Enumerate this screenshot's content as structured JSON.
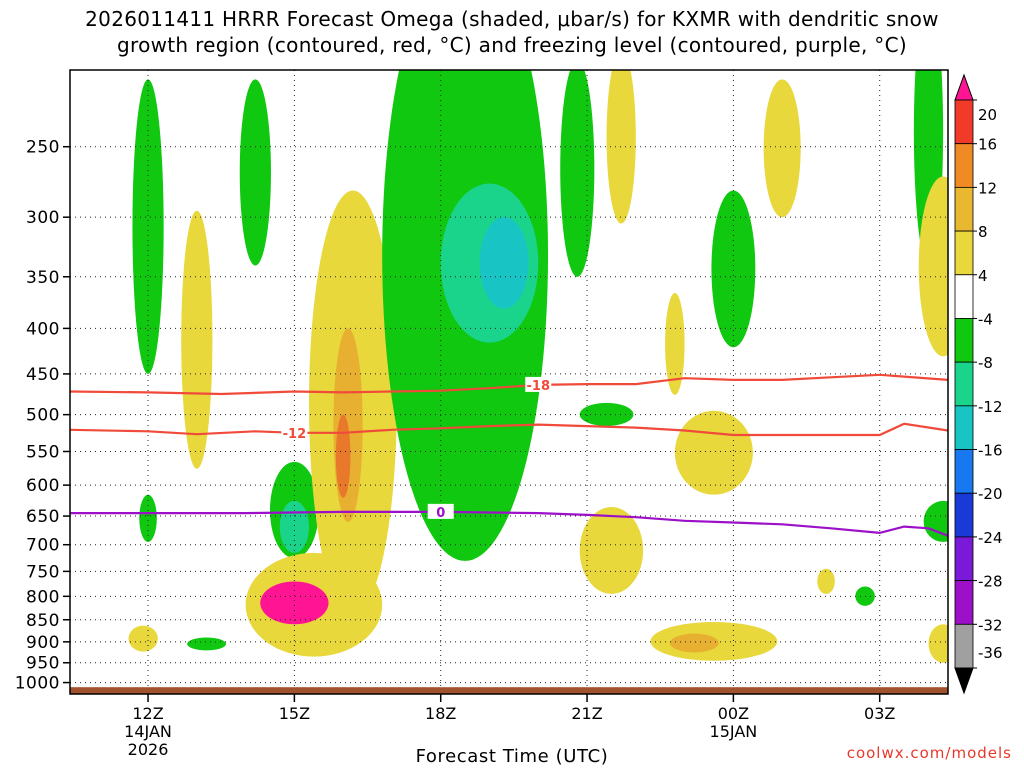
{
  "title": {
    "line1": "2026011411 HRRR Forecast Omega (shaded, μbar/s) for KXMR with dendritic snow",
    "line2": "growth region (contoured, red, °C) and freezing level (contoured, purple, °C)"
  },
  "credit": "coolwx.com/models",
  "chart_data": {
    "type": "contour",
    "title": "2026011411 HRRR Forecast Omega (shaded, μbar/s) for KXMR with dendritic snow growth region (contoured, red, °C) and freezing level (contoured, purple, °C)",
    "xlabel": "Forecast Time (UTC)",
    "ylabel": "",
    "x_range_hours": [
      10.4,
      28.4
    ],
    "y_range_hpa": [
      1030,
      205
    ],
    "x_ticks": [
      {
        "hour": 12,
        "label": "12Z",
        "sub": [
          "14JAN",
          "2026"
        ]
      },
      {
        "hour": 15,
        "label": "15Z",
        "sub": []
      },
      {
        "hour": 18,
        "label": "18Z",
        "sub": []
      },
      {
        "hour": 21,
        "label": "21Z",
        "sub": []
      },
      {
        "hour": 24,
        "label": "00Z",
        "sub": [
          "15JAN"
        ]
      },
      {
        "hour": 27,
        "label": "03Z",
        "sub": []
      }
    ],
    "y_ticks": [
      {
        "p": 250,
        "label": "250"
      },
      {
        "p": 300,
        "label": "300"
      },
      {
        "p": 350,
        "label": "350"
      },
      {
        "p": 400,
        "label": "400"
      },
      {
        "p": 450,
        "label": "450"
      },
      {
        "p": 500,
        "label": "500"
      },
      {
        "p": 550,
        "label": "550"
      },
      {
        "p": 600,
        "label": "600"
      },
      {
        "p": 650,
        "label": "650"
      },
      {
        "p": 700,
        "label": "700"
      },
      {
        "p": 750,
        "label": "750"
      },
      {
        "p": 800,
        "label": "800"
      },
      {
        "p": 850,
        "label": "850"
      },
      {
        "p": 900,
        "label": "900"
      },
      {
        "p": 950,
        "label": "950"
      },
      {
        "p": 1000,
        "label": "1000"
      }
    ],
    "colorbar": {
      "levels": [
        "20",
        "16",
        "12",
        "8",
        "4",
        "-4",
        "-8",
        "-12",
        "-16",
        "-20",
        "-24",
        "-28",
        "-32",
        "-36"
      ],
      "colors": [
        "#ff1493",
        "#f03a2a",
        "#f08a24",
        "#e8b830",
        "#e8d83c",
        "#ffffff",
        "#10c810",
        "#1ad48c",
        "#18c4c4",
        "#1878f0",
        "#1a3ad8",
        "#7a1ad8",
        "#9b10c8",
        "#a0a0a0",
        "#000000"
      ],
      "units": "μbar/s"
    },
    "ground_level_hpa": 1012,
    "ground_color": "#a0522d",
    "contours": [
      {
        "name": "dgz-minus18",
        "label": "-18",
        "color": "#f04a3a",
        "points": [
          [
            10.4,
            471
          ],
          [
            12,
            472
          ],
          [
            13.5,
            474
          ],
          [
            15,
            471
          ],
          [
            16,
            472
          ],
          [
            17,
            471
          ],
          [
            18,
            470
          ],
          [
            19,
            467
          ],
          [
            20,
            463
          ],
          [
            21,
            462
          ],
          [
            22,
            462
          ],
          [
            23,
            455
          ],
          [
            24,
            457
          ],
          [
            25,
            457
          ],
          [
            26,
            454
          ],
          [
            27,
            451
          ],
          [
            28.4,
            457
          ]
        ],
        "label_at": [
          20.0,
          463
        ]
      },
      {
        "name": "dgz-minus12",
        "label": "-12",
        "color": "#f04a3a",
        "points": [
          [
            10.4,
            520
          ],
          [
            12,
            522
          ],
          [
            13,
            526
          ],
          [
            14.2,
            522
          ],
          [
            15,
            524
          ],
          [
            16,
            524
          ],
          [
            17,
            520
          ],
          [
            18,
            518
          ],
          [
            19,
            515
          ],
          [
            20,
            513
          ],
          [
            21,
            515
          ],
          [
            22,
            517
          ],
          [
            23,
            521
          ],
          [
            24,
            527
          ],
          [
            25,
            527
          ],
          [
            26,
            527
          ],
          [
            27,
            527
          ],
          [
            27.5,
            512
          ],
          [
            28.4,
            521
          ]
        ],
        "label_at": [
          15.0,
          524
        ]
      },
      {
        "name": "freezing-level",
        "label": "0",
        "color": "#9b10c8",
        "points": [
          [
            10.4,
            645
          ],
          [
            12,
            645
          ],
          [
            14,
            645
          ],
          [
            16,
            643
          ],
          [
            18,
            643
          ],
          [
            20,
            645
          ],
          [
            21,
            648
          ],
          [
            22,
            652
          ],
          [
            23,
            658
          ],
          [
            24,
            661
          ],
          [
            25,
            664
          ],
          [
            26,
            671
          ],
          [
            27,
            679
          ],
          [
            27.5,
            668
          ],
          [
            28,
            671
          ],
          [
            28.4,
            684
          ]
        ],
        "label_at": [
          18.0,
          643
        ]
      }
    ],
    "omega_regions": [
      {
        "name": "green-12z-upper",
        "level": "-4",
        "center": [
          12.0,
          330
        ],
        "half_width": 0.32,
        "half_height": 120
      },
      {
        "name": "green-12z-low",
        "level": "-4",
        "center": [
          12.0,
          655
        ],
        "half_width": 0.18,
        "half_height": 40
      },
      {
        "name": "green-1330-upper",
        "level": "-4",
        "center": [
          14.2,
          275
        ],
        "half_width": 0.32,
        "half_height": 65
      },
      {
        "name": "yellow-13z-column",
        "level": "4",
        "center": [
          13.0,
          435
        ],
        "half_width": 0.32,
        "half_height": 140
      },
      {
        "name": "yellow-12z-low",
        "level": "4",
        "center": [
          11.9,
          893
        ],
        "half_width": 0.3,
        "half_height": 30
      },
      {
        "name": "green-13z-low",
        "level": "-4",
        "center": [
          13.2,
          905
        ],
        "half_width": 0.4,
        "half_height": 15
      },
      {
        "name": "green-15z-core",
        "level": "-4",
        "center": [
          15.0,
          645
        ],
        "half_width": 0.5,
        "half_height": 80
      },
      {
        "name": "blue-15z-core",
        "level": "-8",
        "center": [
          15.0,
          670
        ],
        "half_width": 0.3,
        "half_height": 45
      },
      {
        "name": "yellow-16z-column",
        "level": "4",
        "center": [
          16.2,
          560
        ],
        "half_width": 0.9,
        "half_height": 280
      },
      {
        "name": "orange-16z",
        "level": "8",
        "center": [
          16.1,
          530
        ],
        "half_width": 0.3,
        "half_height": 130
      },
      {
        "name": "red-16z",
        "level": "12",
        "center": [
          16.0,
          560
        ],
        "half_width": 0.15,
        "half_height": 60
      },
      {
        "name": "yellow-15z-low",
        "level": "4",
        "center": [
          15.4,
          825
        ],
        "half_width": 1.4,
        "half_height": 110
      },
      {
        "name": "magenta-15z-low",
        "level": "20",
        "center": [
          15.0,
          815
        ],
        "half_width": 0.7,
        "half_height": 45
      },
      {
        "name": "green-18z-plume",
        "level": "-4",
        "center": [
          18.5,
          430
        ],
        "half_width": 1.7,
        "half_height": 300
      },
      {
        "name": "teal-18z-plume",
        "level": "-8",
        "center": [
          19.0,
          345
        ],
        "half_width": 1.0,
        "half_height": 70
      },
      {
        "name": "cyan-18z-plume",
        "level": "-12",
        "center": [
          19.3,
          340
        ],
        "half_width": 0.5,
        "half_height": 40
      },
      {
        "name": "green-21z-upper",
        "level": "-4",
        "center": [
          20.8,
          275
        ],
        "half_width": 0.35,
        "half_height": 75
      },
      {
        "name": "yellow-2130-upper",
        "level": "4",
        "center": [
          21.7,
          250
        ],
        "half_width": 0.3,
        "half_height": 55
      },
      {
        "name": "green-21z-mid",
        "level": "-4",
        "center": [
          21.4,
          500
        ],
        "half_width": 0.55,
        "half_height": 15
      },
      {
        "name": "yellow-21z-low",
        "level": "4",
        "center": [
          21.5,
          715
        ],
        "half_width": 0.65,
        "half_height": 80
      },
      {
        "name": "yellow-2230-upper",
        "level": "4",
        "center": [
          22.8,
          420
        ],
        "half_width": 0.2,
        "half_height": 55
      },
      {
        "name": "green-00z-upper",
        "level": "-4",
        "center": [
          24.0,
          350
        ],
        "half_width": 0.45,
        "half_height": 70
      },
      {
        "name": "yellow-00z-mid",
        "level": "4",
        "center": [
          23.6,
          555
        ],
        "half_width": 0.8,
        "half_height": 60
      },
      {
        "name": "yellow-00z-low",
        "level": "4",
        "center": [
          23.6,
          900
        ],
        "half_width": 1.3,
        "half_height": 45
      },
      {
        "name": "orange-00z-low",
        "level": "8",
        "center": [
          23.2,
          903
        ],
        "half_width": 0.5,
        "half_height": 22
      },
      {
        "name": "yellow-01z-upper",
        "level": "4",
        "center": [
          25.0,
          255
        ],
        "half_width": 0.38,
        "half_height": 45
      },
      {
        "name": "green-03z-upper",
        "level": "-4",
        "center": [
          28.0,
          255
        ],
        "half_width": 0.3,
        "half_height": 85
      },
      {
        "name": "yellow-03z-upper",
        "level": "4",
        "center": [
          28.3,
          350
        ],
        "half_width": 0.5,
        "half_height": 80
      },
      {
        "name": "green-03z-low",
        "level": "-4",
        "center": [
          28.3,
          660
        ],
        "half_width": 0.4,
        "half_height": 35
      },
      {
        "name": "yellow-03z-low",
        "level": "4",
        "center": [
          28.3,
          905
        ],
        "half_width": 0.3,
        "half_height": 45
      },
      {
        "name": "yellow-0130-low",
        "level": "4",
        "center": [
          25.9,
          770
        ],
        "half_width": 0.18,
        "half_height": 25
      },
      {
        "name": "green-0130-low",
        "level": "-4",
        "center": [
          26.7,
          800
        ],
        "half_width": 0.2,
        "half_height": 20
      }
    ]
  }
}
